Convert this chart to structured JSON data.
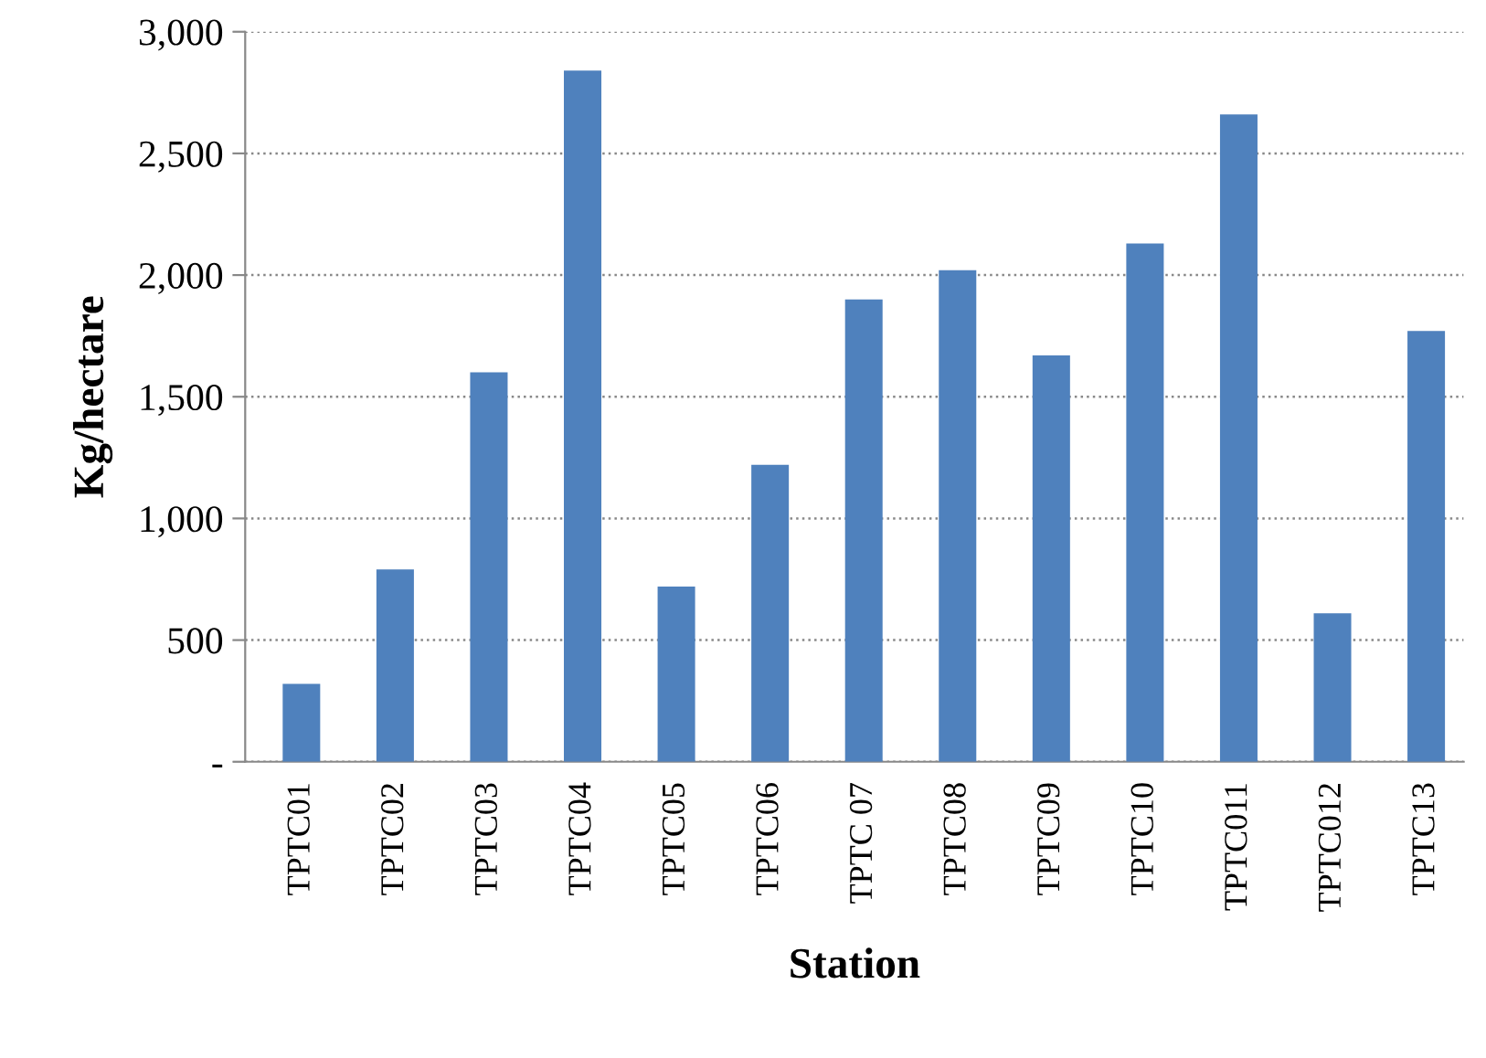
{
  "chart_data": {
    "type": "bar",
    "xlabel": "Station",
    "ylabel": "Kg/hectare",
    "categories": [
      "TPTC01",
      "TPTC02",
      "TPTC03",
      "TPTC04",
      "TPTC05",
      "TPTC06",
      "TPTC 07",
      "TPTC08",
      "TPTC09",
      "TPTC10",
      "TPTC011",
      "TPTC012",
      "TPTC13"
    ],
    "values": [
      320,
      790,
      1600,
      2840,
      720,
      1220,
      1900,
      2020,
      1670,
      2130,
      2660,
      610,
      1770
    ],
    "color": "#4f81bd",
    "ylim": [
      0,
      3000
    ],
    "yticks": [
      {
        "value": 0,
        "label": "-"
      },
      {
        "value": 500,
        "label": "500"
      },
      {
        "value": 1000,
        "label": "1,000"
      },
      {
        "value": 1500,
        "label": "1,500"
      },
      {
        "value": 2000,
        "label": "2,000"
      },
      {
        "value": 2500,
        "label": "2,500"
      },
      {
        "value": 3000,
        "label": "3,000"
      }
    ],
    "grid": "y",
    "legend": false
  }
}
